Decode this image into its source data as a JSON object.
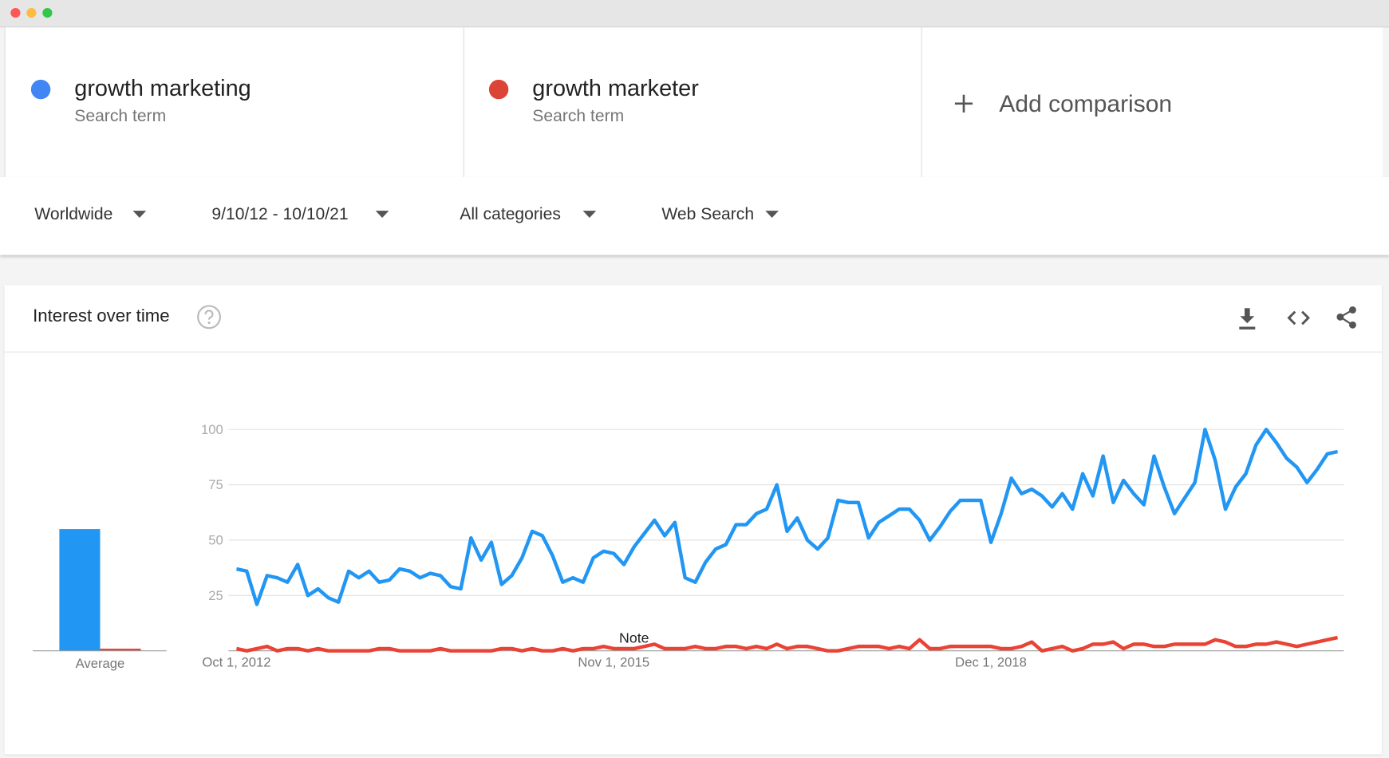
{
  "terms": [
    {
      "name": "growth marketing",
      "subtitle": "Search term",
      "color": "#4285f4"
    },
    {
      "name": "growth marketer",
      "subtitle": "Search term",
      "color": "#db4437"
    }
  ],
  "add_comparison": "Add comparison",
  "filters": [
    "Worldwide",
    "9/10/12 - 10/10/21",
    "All categories",
    "Web Search"
  ],
  "panel_title": "Interest over time",
  "chart_data": [
    {
      "type": "bar",
      "categories": [
        "Average"
      ],
      "ylim": [
        0,
        100
      ],
      "series": [
        {
          "color": "#2196f3",
          "values": [
            55
          ]
        },
        {
          "color": "#ea4335",
          "values": [
            1
          ]
        }
      ]
    },
    {
      "type": "line",
      "ylim": [
        0,
        100
      ],
      "yticks": [
        25,
        50,
        75,
        100
      ],
      "grid": true,
      "annotation": "Note",
      "categories": [
        "Oct 1, 2012",
        null,
        null,
        null,
        null,
        null,
        null,
        null,
        null,
        null,
        null,
        null,
        null,
        null,
        null,
        null,
        null,
        null,
        null,
        null,
        null,
        null,
        null,
        null,
        null,
        null,
        null,
        null,
        null,
        null,
        null,
        null,
        null,
        null,
        null,
        null,
        null,
        "Nov 1, 2015",
        null,
        null,
        null,
        null,
        null,
        null,
        null,
        null,
        null,
        null,
        null,
        null,
        null,
        null,
        null,
        null,
        null,
        null,
        null,
        null,
        null,
        null,
        null,
        null,
        null,
        null,
        null,
        null,
        null,
        null,
        null,
        null,
        null,
        null,
        null,
        null,
        "Dec 1, 2018",
        null,
        null,
        null,
        null,
        null,
        null,
        null,
        null,
        null,
        null,
        null,
        null,
        null,
        null,
        null,
        null,
        null,
        null,
        null,
        null,
        null,
        null,
        null,
        null,
        null,
        null,
        null,
        null,
        null,
        null,
        null,
        null,
        null,
        null
      ],
      "series": [
        {
          "color": "#2196f3",
          "values": [
            37,
            36,
            21,
            34,
            33,
            31,
            39,
            25,
            28,
            24,
            22,
            36,
            33,
            36,
            31,
            32,
            37,
            36,
            33,
            35,
            34,
            29,
            28,
            51,
            41,
            49,
            30,
            34,
            42,
            54,
            52,
            43,
            31,
            33,
            31,
            42,
            45,
            44,
            39,
            47,
            53,
            59,
            52,
            58,
            33,
            31,
            40,
            46,
            48,
            57,
            57,
            62,
            64,
            75,
            54,
            60,
            50,
            46,
            51,
            68,
            67,
            67,
            51,
            58,
            61,
            64,
            64,
            59,
            50,
            56,
            63,
            68,
            68,
            68,
            49,
            62,
            78,
            71,
            73,
            70,
            65,
            71,
            64,
            80,
            70,
            88,
            67,
            77,
            71,
            66,
            88,
            74,
            62,
            69,
            76,
            100,
            86,
            64,
            74,
            80,
            93,
            100,
            94,
            87,
            83,
            76,
            82,
            89,
            90
          ]
        },
        {
          "color": "#ea4335",
          "values": [
            1,
            0,
            1,
            2,
            0,
            1,
            1,
            0,
            1,
            0,
            0,
            0,
            0,
            0,
            1,
            1,
            0,
            0,
            0,
            0,
            1,
            0,
            0,
            0,
            0,
            0,
            1,
            1,
            0,
            1,
            0,
            0,
            1,
            0,
            1,
            1,
            2,
            1,
            1,
            1,
            2,
            3,
            1,
            1,
            1,
            2,
            1,
            1,
            2,
            2,
            1,
            2,
            1,
            3,
            1,
            2,
            2,
            1,
            0,
            0,
            1,
            2,
            2,
            2,
            1,
            2,
            1,
            5,
            1,
            1,
            2,
            2,
            2,
            2,
            2,
            1,
            1,
            2,
            4,
            0,
            1,
            2,
            0,
            1,
            3,
            3,
            4,
            1,
            3,
            3,
            2,
            2,
            3,
            3,
            3,
            3,
            5,
            4,
            2,
            2,
            3,
            3,
            4,
            3,
            2,
            3,
            4,
            5,
            6
          ]
        }
      ]
    }
  ]
}
